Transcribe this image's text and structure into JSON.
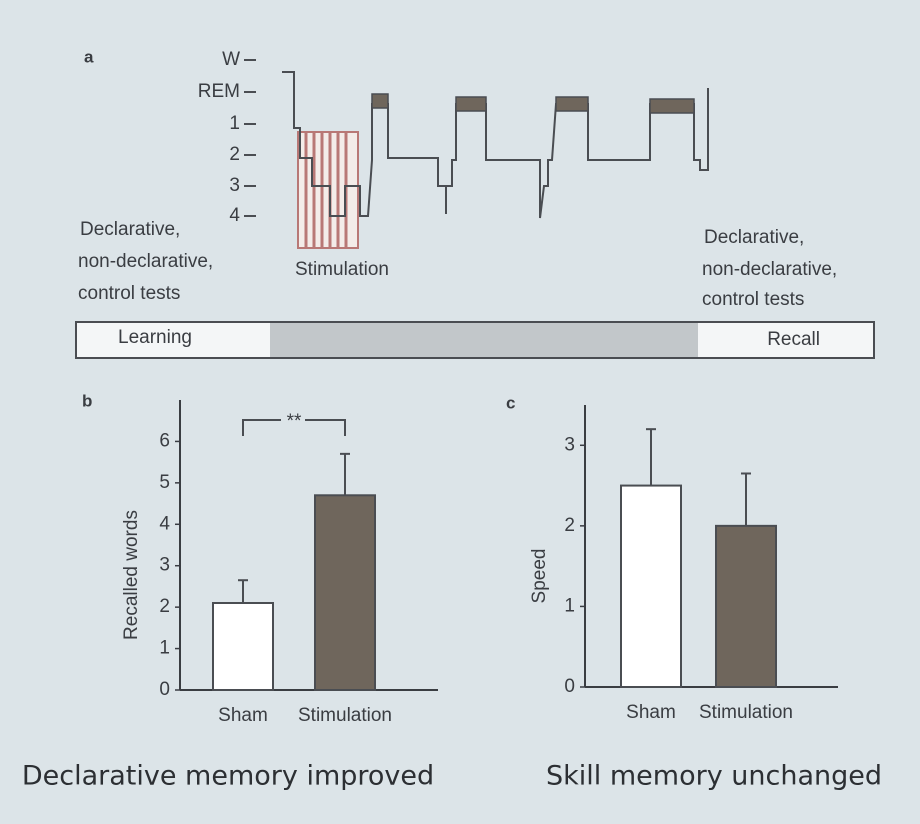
{
  "panel_a": {
    "label": "a",
    "stages": [
      "W",
      "REM",
      "1",
      "2",
      "3",
      "4"
    ],
    "left_text": [
      "Declarative,",
      "non-declarative,",
      "control tests"
    ],
    "stimulation": "Stimulation",
    "right_text": [
      "Declarative,",
      "non-declarative,",
      "control tests"
    ],
    "timeline": [
      "Learning",
      "Recall"
    ]
  },
  "chart_data": [
    {
      "type": "bar",
      "label": "b",
      "ylabel": "Recalled words",
      "categories": [
        "Sham",
        "Stimulation"
      ],
      "values": [
        2.1,
        4.7
      ],
      "errors": [
        0.55,
        1.0
      ],
      "colors": [
        "#ffffff",
        "#6f665c"
      ],
      "ylim": [
        0,
        7
      ],
      "yticks": [
        0,
        1,
        2,
        3,
        4,
        5,
        6
      ],
      "annotation": "**",
      "caption": "Declarative memory improved"
    },
    {
      "type": "bar",
      "label": "c",
      "ylabel": "Speed",
      "categories": [
        "Sham",
        "Stimulation"
      ],
      "values": [
        2.5,
        2.0
      ],
      "errors": [
        0.7,
        0.65
      ],
      "colors": [
        "#ffffff",
        "#6f665c"
      ],
      "ylim": [
        0,
        3.5
      ],
      "yticks": [
        0,
        1,
        2,
        3
      ],
      "caption": "Skill memory unchanged"
    }
  ]
}
